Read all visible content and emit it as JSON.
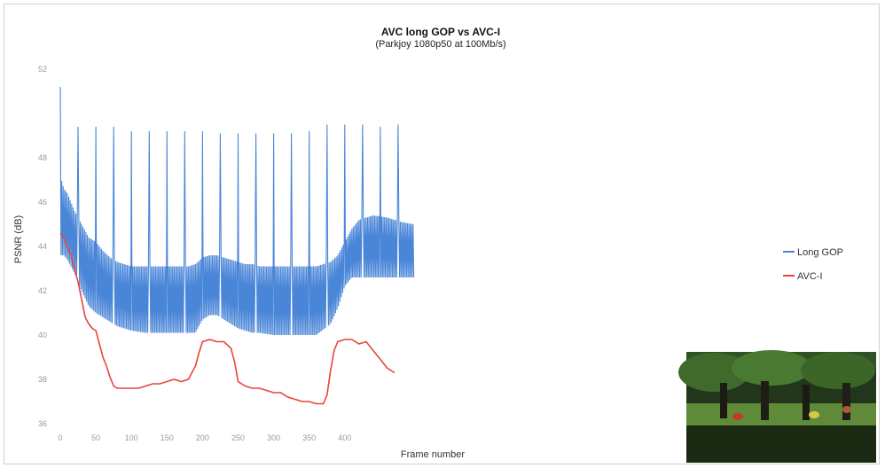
{
  "chart_data": {
    "type": "line",
    "title": "AVC long GOP vs AVC-I",
    "subtitle": "(Parkjoy 1080p50 at 100Mb/s)",
    "xlabel": "Frame number",
    "ylabel": "PSNR (dB)",
    "xlim": [
      0,
      500
    ],
    "ylim": [
      36,
      52
    ],
    "x_ticks": [
      0,
      50,
      100,
      150,
      200,
      250,
      300,
      350,
      400
    ],
    "y_ticks": [
      36,
      38,
      40,
      42,
      44,
      46,
      48,
      52
    ],
    "y_tick_labels": [
      "36",
      "38",
      "40",
      "42",
      "44",
      "46",
      "48",
      "52"
    ],
    "legend_position": "right",
    "grid": false,
    "series": [
      {
        "name": "Long GOP",
        "color": "#4a86d8",
        "style": "oscillating",
        "gop_length": 25,
        "x_end": 497,
        "i_frames": [
          0,
          25,
          50,
          75,
          100,
          125,
          150,
          175,
          200,
          225,
          250,
          275,
          300,
          325,
          350,
          375,
          400,
          425,
          450,
          475
        ],
        "i_frame_peaks": [
          51.2,
          49.4,
          49.4,
          49.4,
          49.2,
          49.2,
          49.2,
          49.2,
          49.2,
          49.1,
          49.1,
          49.1,
          49.1,
          49.1,
          49.2,
          49.5,
          49.5,
          49.5,
          49.4,
          49.5
        ],
        "envelope_x": [
          0,
          5,
          10,
          20,
          30,
          40,
          50,
          60,
          70,
          80,
          90,
          100,
          120,
          140,
          160,
          180,
          190,
          200,
          210,
          220,
          230,
          240,
          250,
          260,
          270,
          280,
          300,
          320,
          340,
          360,
          380,
          390,
          400,
          410,
          420,
          440,
          460,
          480,
          497
        ],
        "envelope_high": [
          47.2,
          46.6,
          46.4,
          45.6,
          45.0,
          44.4,
          44.2,
          43.8,
          43.5,
          43.3,
          43.2,
          43.1,
          43.1,
          43.1,
          43.1,
          43.1,
          43.2,
          43.5,
          43.6,
          43.6,
          43.5,
          43.4,
          43.3,
          43.2,
          43.2,
          43.1,
          43.1,
          43.1,
          43.1,
          43.1,
          43.3,
          43.6,
          44.2,
          44.8,
          45.2,
          45.4,
          45.3,
          45.1,
          45.0
        ],
        "envelope_low": [
          43.6,
          43.6,
          43.4,
          42.8,
          42.0,
          41.3,
          41.0,
          40.8,
          40.6,
          40.4,
          40.3,
          40.2,
          40.1,
          40.1,
          40.1,
          40.1,
          40.1,
          40.7,
          40.9,
          40.9,
          40.7,
          40.5,
          40.3,
          40.2,
          40.1,
          40.1,
          40.0,
          40.0,
          40.0,
          40.0,
          40.5,
          41.2,
          42.2,
          42.6,
          42.6,
          42.6,
          42.6,
          42.6,
          42.6
        ]
      },
      {
        "name": "AVC-I",
        "color": "#e6453a",
        "x": [
          0,
          5,
          10,
          15,
          20,
          25,
          30,
          35,
          40,
          45,
          50,
          55,
          60,
          65,
          70,
          75,
          80,
          90,
          100,
          110,
          120,
          130,
          140,
          150,
          160,
          170,
          180,
          190,
          195,
          200,
          210,
          220,
          230,
          240,
          245,
          250,
          260,
          270,
          280,
          290,
          300,
          310,
          320,
          330,
          340,
          350,
          360,
          370,
          375,
          380,
          385,
          390,
          400,
          410,
          420,
          430,
          440,
          450,
          460,
          470
        ],
        "y": [
          44.6,
          44.4,
          44.0,
          43.6,
          43.0,
          42.4,
          41.6,
          40.8,
          40.5,
          40.3,
          40.2,
          39.6,
          39.0,
          38.6,
          38.1,
          37.7,
          37.6,
          37.6,
          37.6,
          37.6,
          37.7,
          37.8,
          37.8,
          37.9,
          38.0,
          37.9,
          38.0,
          38.6,
          39.2,
          39.7,
          39.8,
          39.7,
          39.7,
          39.4,
          38.8,
          37.9,
          37.7,
          37.6,
          37.6,
          37.5,
          37.4,
          37.4,
          37.2,
          37.1,
          37.0,
          37.0,
          36.9,
          36.9,
          37.3,
          38.4,
          39.3,
          39.7,
          39.8,
          39.8,
          39.6,
          39.7,
          39.3,
          38.9,
          38.5,
          38.3
        ]
      }
    ]
  }
}
